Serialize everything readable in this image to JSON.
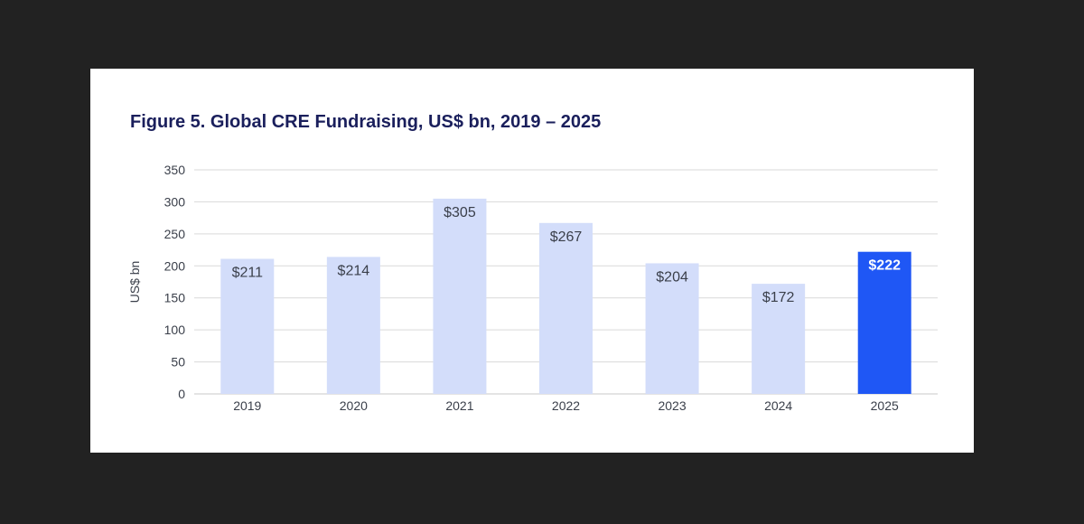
{
  "chart_data": {
    "type": "bar",
    "title": "Figure 5. Global CRE Fundraising, US$ bn, 2019 – 2025",
    "ylabel": "US$ bn",
    "xlabel": "",
    "categories": [
      "2019",
      "2020",
      "2021",
      "2022",
      "2023",
      "2024",
      "2025"
    ],
    "values": [
      211,
      214,
      305,
      267,
      204,
      172,
      222
    ],
    "data_labels": [
      "$211",
      "$214",
      "$305",
      "$267",
      "$204",
      "$172",
      "$222"
    ],
    "ylim": [
      0,
      350
    ],
    "yticks": [
      0,
      50,
      100,
      150,
      200,
      250,
      300,
      350
    ],
    "highlight_index": 6,
    "grid": true,
    "colors": {
      "bar": "#d3ddfa",
      "highlight": "#1f57f5",
      "grid": "#d9d9d9",
      "title": "#1a1f5c"
    }
  }
}
